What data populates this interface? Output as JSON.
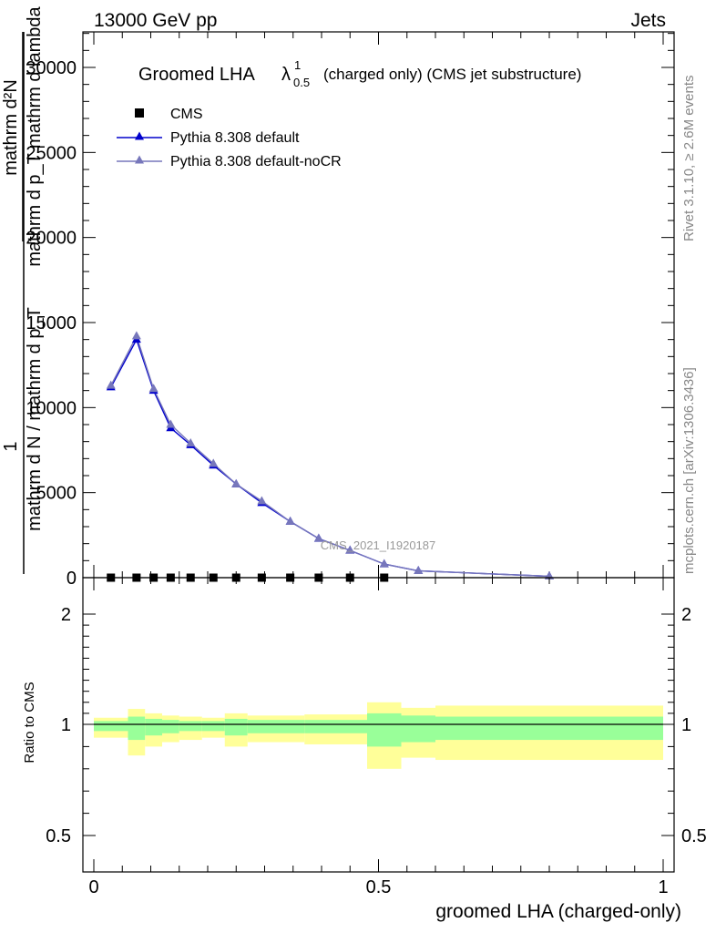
{
  "header": {
    "left": "13000 GeV pp",
    "right": "Jets"
  },
  "side_labels": {
    "rivet": "Rivet 3.1.10, ≥ 2.6M events",
    "mcplots": "mcplots.cern.ch [arXiv:1306.3436]"
  },
  "watermark": "CMS_2021_I1920187",
  "title": {
    "main": "Groomed LHA",
    "lambda": "λ",
    "sup": "1",
    "sub": "0.5",
    "rest": "(charged only) (CMS jet substructure)"
  },
  "legend": {
    "cms": "CMS",
    "default": "Pythia 8.308 default",
    "nocr": "Pythia 8.308 default-noCR"
  },
  "ylabel": {
    "frac_one": "1",
    "frac_num": "mathrm d²N",
    "frac_den": "mathrm d p_T mathrm d lambda",
    "denominator": "mathrm d N / mathrm d p_T"
  },
  "ratio_ylabel": "Ratio to CMS",
  "xlabel": "groomed LHA (charged-only)",
  "colors": {
    "default": "#0000cc",
    "nocr": "#7777bb",
    "band_inner": "#99ff99",
    "band_outer": "#ffff99",
    "data": "#000000",
    "watermark": "#999999"
  },
  "chart_data": {
    "type": "line",
    "xlim": [
      0,
      1
    ],
    "xticks": [
      0,
      0.5,
      1
    ],
    "xtick_labels": [
      "0",
      "0.5",
      "1"
    ],
    "main": {
      "ylim": [
        0,
        32000
      ],
      "yticks": [
        0,
        5000,
        10000,
        15000,
        20000,
        25000,
        30000
      ],
      "ytick_labels": [
        "0",
        "5000",
        "10000",
        "15000",
        "20000",
        "25000",
        "30000"
      ],
      "series": [
        {
          "name": "Pythia 8.308 default",
          "marker": "triangle",
          "x": [
            0.03,
            0.075,
            0.105,
            0.135,
            0.17,
            0.21,
            0.25,
            0.295,
            0.345,
            0.395,
            0.45,
            0.51,
            0.57,
            0.8
          ],
          "values": [
            11200,
            14000,
            11000,
            8800,
            7800,
            6600,
            5500,
            4400,
            3300,
            2300,
            1600,
            800,
            400,
            80
          ]
        },
        {
          "name": "Pythia 8.308 default-noCR",
          "marker": "triangle",
          "x": [
            0.03,
            0.075,
            0.105,
            0.135,
            0.17,
            0.21,
            0.25,
            0.295,
            0.345,
            0.395,
            0.45,
            0.51,
            0.57,
            0.8
          ],
          "values": [
            11300,
            14200,
            11100,
            9000,
            7900,
            6700,
            5500,
            4500,
            3300,
            2300,
            1600,
            800,
            400,
            80
          ]
        },
        {
          "name": "CMS",
          "marker": "square",
          "x": [
            0.03,
            0.075,
            0.105,
            0.135,
            0.17,
            0.21,
            0.25,
            0.295,
            0.345,
            0.395,
            0.45,
            0.51
          ],
          "values": [
            0,
            0,
            0,
            0,
            0,
            0,
            0,
            0,
            0,
            0,
            0,
            0
          ]
        }
      ]
    },
    "ratio": {
      "ylim": [
        0.4,
        2.3
      ],
      "yticks": [
        0.5,
        1,
        2
      ],
      "ytick_labels": [
        "0.5",
        "1",
        "2"
      ],
      "reference": 1,
      "bins": [
        {
          "lo": 0.0,
          "hi": 0.06,
          "inner": [
            0.97,
            1.03
          ],
          "outer": [
            0.94,
            1.06
          ]
        },
        {
          "lo": 0.06,
          "hi": 0.09,
          "inner": [
            0.93,
            1.07
          ],
          "outer": [
            0.86,
            1.14
          ]
        },
        {
          "lo": 0.09,
          "hi": 0.12,
          "inner": [
            0.95,
            1.05
          ],
          "outer": [
            0.9,
            1.1
          ]
        },
        {
          "lo": 0.12,
          "hi": 0.15,
          "inner": [
            0.96,
            1.04
          ],
          "outer": [
            0.92,
            1.08
          ]
        },
        {
          "lo": 0.15,
          "hi": 0.19,
          "inner": [
            0.97,
            1.03
          ],
          "outer": [
            0.93,
            1.07
          ]
        },
        {
          "lo": 0.19,
          "hi": 0.23,
          "inner": [
            0.97,
            1.03
          ],
          "outer": [
            0.94,
            1.06
          ]
        },
        {
          "lo": 0.23,
          "hi": 0.27,
          "inner": [
            0.95,
            1.05
          ],
          "outer": [
            0.9,
            1.1
          ]
        },
        {
          "lo": 0.27,
          "hi": 0.32,
          "inner": [
            0.96,
            1.04
          ],
          "outer": [
            0.92,
            1.08
          ]
        },
        {
          "lo": 0.32,
          "hi": 0.37,
          "inner": [
            0.96,
            1.04
          ],
          "outer": [
            0.92,
            1.08
          ]
        },
        {
          "lo": 0.37,
          "hi": 0.42,
          "inner": [
            0.96,
            1.04
          ],
          "outer": [
            0.91,
            1.09
          ]
        },
        {
          "lo": 0.42,
          "hi": 0.48,
          "inner": [
            0.96,
            1.04
          ],
          "outer": [
            0.91,
            1.09
          ]
        },
        {
          "lo": 0.48,
          "hi": 0.54,
          "inner": [
            0.9,
            1.1
          ],
          "outer": [
            0.8,
            1.2
          ]
        },
        {
          "lo": 0.54,
          "hi": 0.6,
          "inner": [
            0.92,
            1.08
          ],
          "outer": [
            0.85,
            1.15
          ]
        },
        {
          "lo": 0.6,
          "hi": 1.0,
          "inner": [
            0.93,
            1.07
          ],
          "outer": [
            0.84,
            1.17
          ]
        }
      ]
    }
  }
}
